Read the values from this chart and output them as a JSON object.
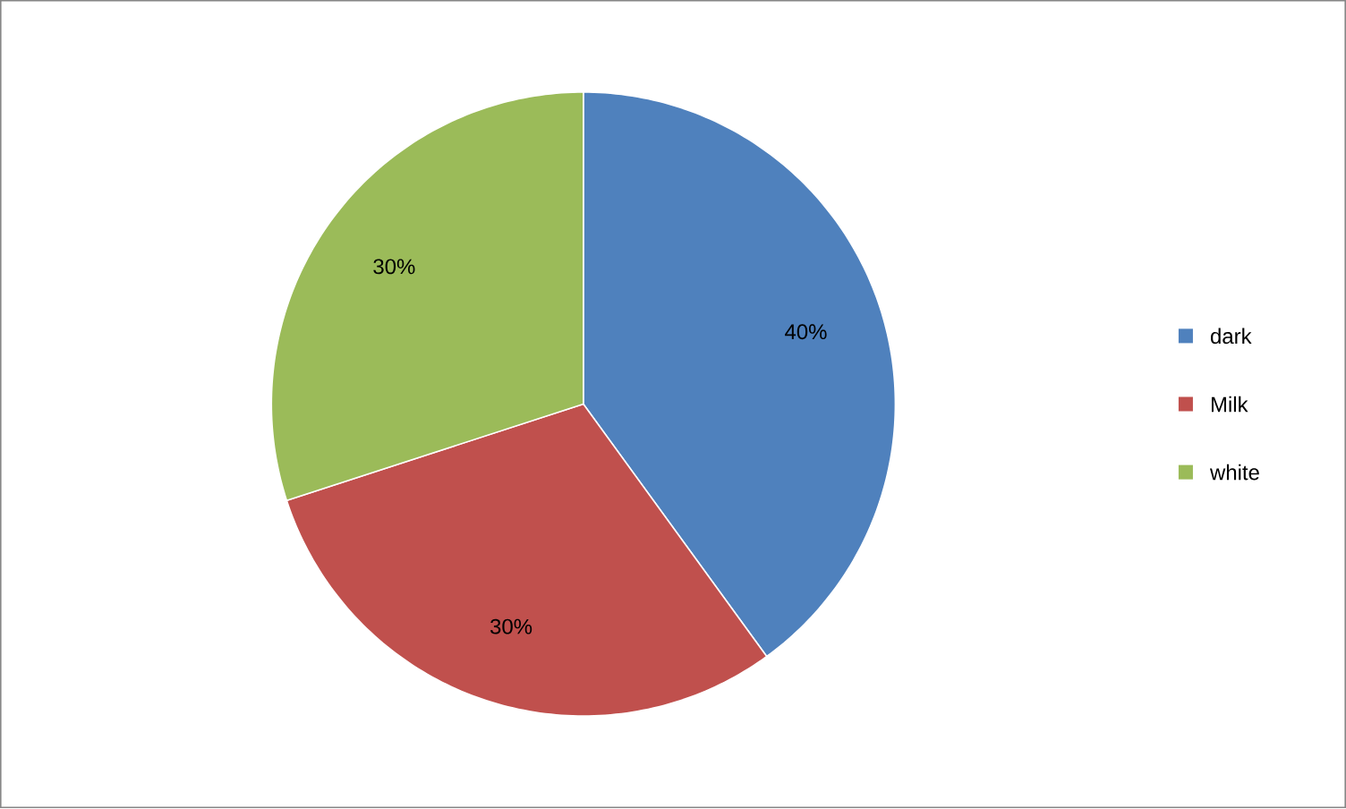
{
  "chart_data": {
    "type": "pie",
    "categories": [
      "dark",
      "Milk",
      "white"
    ],
    "values": [
      40,
      30,
      30
    ],
    "colors": [
      "#4f81bd",
      "#c0504d",
      "#9bbb59"
    ],
    "value_labels": [
      "40%",
      "30%",
      "30%"
    ],
    "legend": "right"
  }
}
